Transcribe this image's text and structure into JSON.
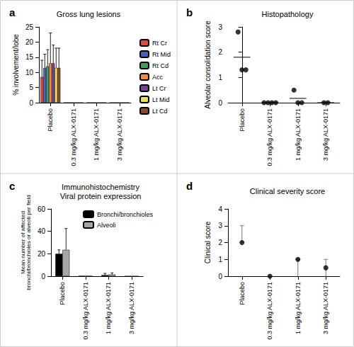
{
  "chart_data": [
    {
      "panel_label": "a",
      "type": "bar",
      "title": "Gross lung lesions",
      "ylabel": "% involvement/lobe",
      "categories": [
        "Placebo",
        "0.3 mg/kg ALX-0171",
        "1 mg/kg ALX-0171",
        "3 mg/kg ALX-0171"
      ],
      "series": [
        {
          "name": "Rt Cr",
          "color": "#e8453c",
          "values": [
            8.5,
            0,
            0,
            0
          ],
          "errors": [
            5.5,
            0,
            0,
            0
          ]
        },
        {
          "name": "Rt Mid",
          "color": "#4f5fbf",
          "values": [
            11.5,
            0,
            0,
            0
          ],
          "errors": [
            4.5,
            0,
            0,
            0
          ]
        },
        {
          "name": "Rt Cd",
          "color": "#3aa05a",
          "values": [
            12,
            0,
            0,
            0
          ],
          "errors": [
            5.5,
            0,
            0,
            0
          ]
        },
        {
          "name": "Acc",
          "color": "#f58a3c",
          "values": [
            13,
            0,
            0,
            0
          ],
          "errors": [
            10,
            0,
            0,
            0
          ]
        },
        {
          "name": "Lt Cr",
          "color": "#7a3f9d",
          "values": [
            13,
            0,
            0,
            0
          ],
          "errors": [
            6,
            0,
            0,
            0
          ]
        },
        {
          "name": "Lt Mid",
          "color": "#e6e24a",
          "values": [
            11.5,
            0,
            0,
            0
          ],
          "errors": [
            6.5,
            0,
            0,
            0
          ]
        },
        {
          "name": "Lt Cd",
          "color": "#8b4a2b",
          "values": [
            11.5,
            0,
            0,
            0
          ],
          "errors": [
            6.5,
            0,
            0,
            0
          ]
        }
      ],
      "ylim": [
        0,
        25
      ],
      "yticks": [
        0,
        5,
        10,
        15,
        20,
        25
      ],
      "grid": false,
      "legend": "right"
    },
    {
      "panel_label": "b",
      "type": "scatter",
      "title": "Histopathology",
      "ylabel": "Alveolar consolidation score",
      "categories": [
        "Placebo",
        "0.3 mg/kg ALX-0171",
        "1 mg/kg ALX-0171",
        "3 mg/kg ALX-0171"
      ],
      "points": [
        [
          2.8,
          1.3,
          1.3
        ],
        [
          0,
          0,
          0,
          0
        ],
        [
          0.5,
          0,
          0
        ],
        [
          0,
          0
        ]
      ],
      "means": [
        1.8,
        0,
        0.17,
        0
      ],
      "color": "#000000",
      "marker": "circle",
      "ylim": [
        0,
        3
      ],
      "yticks": [
        0,
        1,
        2,
        3
      ],
      "grid": false
    },
    {
      "panel_label": "c",
      "type": "bar",
      "title": [
        "Immunohistochemistry",
        "Viral protein expression"
      ],
      "ylabel": [
        "Mean number of affected",
        "bronchi/bronchioles or alveoli per field"
      ],
      "categories": [
        "Placebo",
        "0.3 mg/kg ALX-0171",
        "1 mg/kg ALX-0171",
        "3 mg/kg ALX-0171"
      ],
      "series": [
        {
          "name": "Bronchi/bronchioles",
          "color": "#000000",
          "values": [
            20,
            0.3,
            1,
            0
          ],
          "errors": [
            3.5,
            0,
            1.5,
            0
          ]
        },
        {
          "name": "Alveoli",
          "color": "#a6a6a6",
          "values": [
            23.5,
            0.2,
            1.5,
            0
          ],
          "errors": [
            19,
            0,
            1.5,
            0
          ]
        }
      ],
      "ylim": [
        0,
        60
      ],
      "yticks": [
        0,
        20,
        40,
        60
      ],
      "grid": false,
      "legend": "upper right"
    },
    {
      "panel_label": "d",
      "type": "scatter",
      "title": "Clinical severity score",
      "ylabel": "Clinical score",
      "categories": [
        "Placebo",
        "0.3 mg/kg ALX-0171",
        "1 mg/kg ALX-0171",
        "3 mg/kg ALX-0171"
      ],
      "values": [
        2,
        0,
        1,
        0.5
      ],
      "low": [
        2,
        0,
        0,
        0
      ],
      "high": [
        3,
        0,
        1,
        1
      ],
      "color": "#000000",
      "marker": "circle",
      "ylim": [
        0,
        4
      ],
      "yticks": [
        0,
        1,
        2,
        3,
        4
      ],
      "grid": false
    }
  ]
}
